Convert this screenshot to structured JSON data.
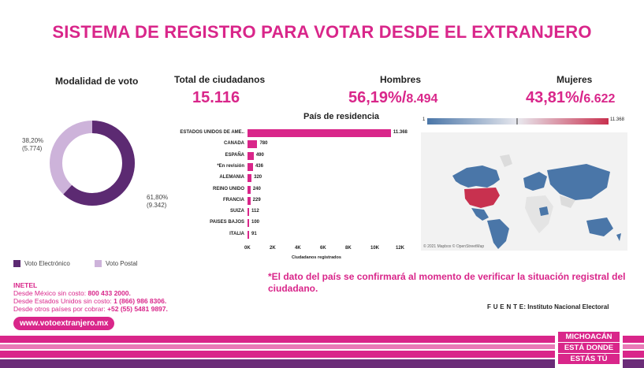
{
  "header": {
    "title": "SISTEMA DE REGISTRO PARA VOTAR DESDE EL EXTRANJERO"
  },
  "voting_mode": {
    "title": "Modalidad de voto",
    "postal_pct": "38,20%",
    "postal_count": "(5.774)",
    "electronic_pct": "61,80%",
    "electronic_count": "(9.342)",
    "legend_electronic": "Voto Electrónico",
    "legend_postal": "Voto Postal",
    "color_electronic": "#5c2a72",
    "color_postal": "#cdb3da"
  },
  "stats": {
    "total_label": "Total de ciudadanos",
    "total_value": "15.116",
    "men_label": "Hombres",
    "men_pct": "56,19%/",
    "men_count": "8.494",
    "women_label": "Mujeres",
    "women_pct": "43,81%/",
    "women_count": "6.622"
  },
  "chart_data": {
    "type": "bar",
    "title": "País de residencia",
    "xlabel": "Ciudadanos registrados",
    "categories": [
      "ESTADOS UNIDOS DE AME..",
      "CANADA",
      "ESPAÑA",
      "*En revisión",
      "ALEMANIA",
      "REINO UNIDO",
      "FRANCIA",
      "SUIZA",
      "PAISES BAJOS",
      "ITALIA"
    ],
    "values": [
      11368,
      780,
      490,
      436,
      320,
      240,
      229,
      112,
      100,
      91
    ],
    "value_labels": [
      "11.368",
      "780",
      "490",
      "436",
      "320",
      "240",
      "229",
      "112",
      "100",
      "91"
    ],
    "xlim": [
      0,
      12000
    ],
    "xticks": [
      0,
      2000,
      4000,
      6000,
      8000,
      10000,
      12000
    ],
    "xtick_labels": [
      "0K",
      "2K",
      "4K",
      "6K",
      "8K",
      "10K",
      "12K"
    ],
    "bar_color": "#d9268a",
    "grid": false
  },
  "map": {
    "scale_min": "1",
    "scale_max": "11.368",
    "credit": "© 2021 Mapbox  © OpenStreetMap",
    "color_low": "#4a76a8",
    "color_high": "#c8314f"
  },
  "contact": {
    "org": "INETEL",
    "line1_text": "Desde México sin costo: ",
    "line1_num": "800 433 2000.",
    "line2_text": "Desde Estados Unidos sin costo: ",
    "line2_num": "1 (866) 986 8306.",
    "line3_text": "Desde otros países por cobrar: ",
    "line3_num": "+52 (55) 5481 9897.",
    "url": "www.votoextranjero.mx"
  },
  "footnote": "*El dato del país se confirmará al momento de verificar la situación registral del ciudadano.",
  "source": {
    "label": "F U E N T E",
    "text": ": Instituto Nacional Electoral"
  },
  "badge": {
    "line1": "MICHOACÁN",
    "line2": "ESTÁ DONDE",
    "line3": "ESTÁS TÚ"
  }
}
